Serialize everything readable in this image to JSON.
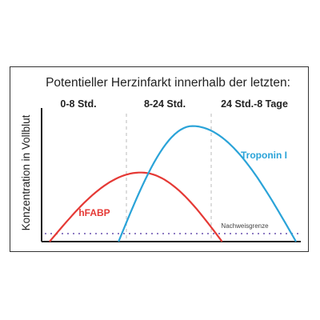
{
  "chart_data": {
    "type": "line",
    "title": "Potentieller Herzinfarkt innerhalb der letzten:",
    "ylabel": "Konzentration in Vollblut",
    "xlabel": "",
    "periods": [
      "0-8 Std.",
      "8-24 Std.",
      "24 Std.-8 Tage"
    ],
    "threshold_label": "Nachweisgrenze",
    "grid": false,
    "series": [
      {
        "name": "hFABP",
        "color": "#e53935",
        "start": 0.0,
        "peak": 0.37,
        "end": 0.7,
        "peak_level": 0.55
      },
      {
        "name": "Troponin I",
        "color": "#2aa3d8",
        "start": 0.28,
        "peak": 0.58,
        "end": 1.0,
        "peak_level": 0.92
      }
    ],
    "threshold_color": "#8e7cc3"
  }
}
